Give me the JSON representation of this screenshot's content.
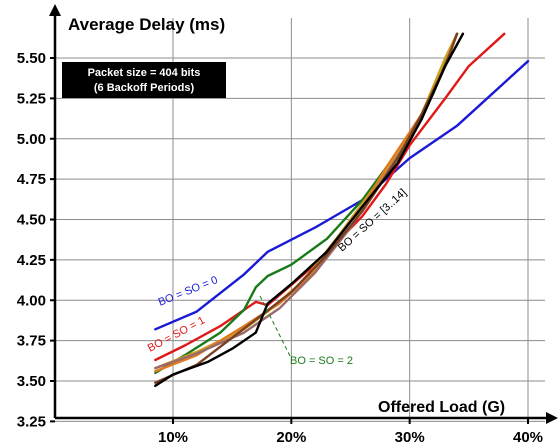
{
  "chart_data": {
    "type": "line",
    "title": "Average Delay (ms)",
    "xlabel": "Offered Load (G)",
    "xlim": [
      0,
      40
    ],
    "ylim": [
      3.25,
      5.65
    ],
    "x_ticks": [
      10,
      20,
      30,
      40
    ],
    "x_tick_labels": [
      "10%",
      "20%",
      "30%",
      "40%"
    ],
    "y_ticks": [
      3.25,
      3.5,
      3.75,
      4.0,
      4.25,
      4.5,
      4.75,
      5.0,
      5.25,
      5.5
    ],
    "y_tick_labels": [
      "3.25",
      "3.50",
      "3.75",
      "4.00",
      "4.25",
      "4.50",
      "4.75",
      "5.00",
      "5.25",
      "5.50"
    ],
    "grid": true,
    "info_box": [
      "Packet size = 404 bits",
      "(6 Backoff Periods)"
    ],
    "annotations": [
      {
        "text": "BO = SO = 0",
        "color": "#1a1ad6"
      },
      {
        "text": "BO = SO = 1",
        "color": "#e01818"
      },
      {
        "text": "BO = SO = 2",
        "color": "#1a7a1a"
      },
      {
        "text": "BO = SO = [3..14]",
        "color": "#000000"
      }
    ],
    "series": [
      {
        "color": "#1a1ad6",
        "points": [
          [
            8.5,
            3.82
          ],
          [
            12,
            3.93
          ],
          [
            16,
            4.16
          ],
          [
            18,
            4.3
          ],
          [
            22,
            4.45
          ],
          [
            26,
            4.62
          ],
          [
            30,
            4.88
          ],
          [
            34,
            5.08
          ],
          [
            40,
            5.48
          ]
        ]
      },
      {
        "color": "#e01818",
        "points": [
          [
            8.5,
            3.63
          ],
          [
            11,
            3.72
          ],
          [
            14,
            3.84
          ],
          [
            17,
            3.99
          ],
          [
            18,
            3.97
          ],
          [
            22,
            4.22
          ],
          [
            26,
            4.52
          ],
          [
            28,
            4.72
          ],
          [
            30,
            4.96
          ],
          [
            33,
            5.25
          ],
          [
            35,
            5.45
          ],
          [
            38,
            5.65
          ]
        ]
      },
      {
        "color": "#1a7a1a",
        "points": [
          [
            8.5,
            3.55
          ],
          [
            11,
            3.66
          ],
          [
            14,
            3.8
          ],
          [
            16,
            3.94
          ],
          [
            17,
            4.08
          ],
          [
            18,
            4.15
          ],
          [
            20,
            4.22
          ],
          [
            23,
            4.38
          ],
          [
            26,
            4.62
          ],
          [
            30,
            5.02
          ],
          [
            32,
            5.28
          ],
          [
            34,
            5.65
          ]
        ]
      },
      {
        "color": "#cfa020",
        "points": [
          [
            8.5,
            3.58
          ],
          [
            12,
            3.68
          ],
          [
            16,
            3.82
          ],
          [
            18,
            3.93
          ],
          [
            21,
            4.12
          ],
          [
            24,
            4.4
          ],
          [
            28,
            4.8
          ],
          [
            31,
            5.15
          ],
          [
            33,
            5.5
          ],
          [
            34,
            5.65
          ]
        ]
      },
      {
        "color": "#e07a20",
        "points": [
          [
            8.5,
            3.56
          ],
          [
            12,
            3.66
          ],
          [
            16,
            3.84
          ],
          [
            19,
            3.98
          ],
          [
            22,
            4.18
          ],
          [
            25,
            4.45
          ],
          [
            28,
            4.82
          ],
          [
            31,
            5.15
          ],
          [
            33,
            5.45
          ],
          [
            34,
            5.65
          ]
        ]
      },
      {
        "color": "#9a6a6a",
        "points": [
          [
            8.5,
            3.58
          ],
          [
            12,
            3.67
          ],
          [
            16,
            3.8
          ],
          [
            19,
            3.95
          ],
          [
            22,
            4.17
          ],
          [
            25,
            4.45
          ],
          [
            28,
            4.78
          ],
          [
            31,
            5.12
          ],
          [
            33,
            5.45
          ],
          [
            34.5,
            5.65
          ]
        ]
      },
      {
        "color": "#7a4020",
        "points": [
          [
            8.5,
            3.49
          ],
          [
            12,
            3.6
          ],
          [
            17,
            3.88
          ],
          [
            20,
            4.05
          ],
          [
            23,
            4.28
          ],
          [
            26,
            4.55
          ],
          [
            29,
            4.88
          ],
          [
            31,
            5.15
          ],
          [
            33,
            5.45
          ],
          [
            34,
            5.65
          ]
        ]
      },
      {
        "color": "#000000",
        "points": [
          [
            8.5,
            3.47
          ],
          [
            10,
            3.54
          ],
          [
            13,
            3.62
          ],
          [
            15,
            3.7
          ],
          [
            17,
            3.8
          ],
          [
            18,
            3.98
          ],
          [
            20,
            4.1
          ],
          [
            23,
            4.3
          ],
          [
            26,
            4.58
          ],
          [
            29,
            4.85
          ],
          [
            31,
            5.12
          ],
          [
            33,
            5.45
          ],
          [
            34.5,
            5.65
          ]
        ]
      }
    ]
  }
}
